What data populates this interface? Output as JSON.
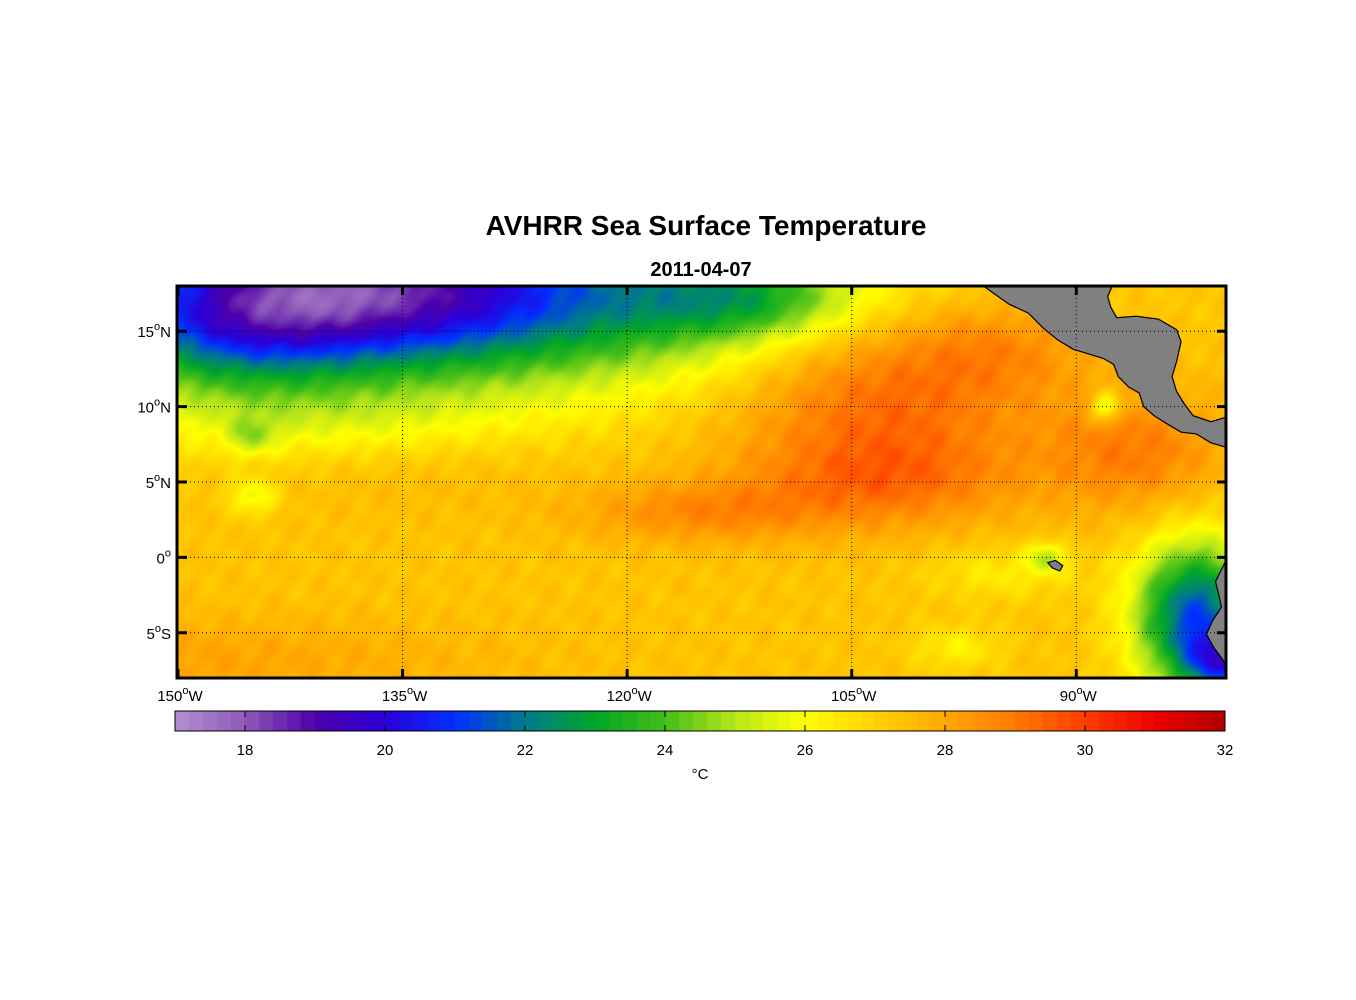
{
  "chart_data": {
    "type": "heatmap",
    "title": "AVHRR Sea Surface Temperature",
    "subtitle": "2011-04-07",
    "xlim": [
      -150,
      -80
    ],
    "ylim": [
      -8,
      18
    ],
    "x_ticks": [
      {
        "value": -150,
        "num": "150",
        "dir": "W"
      },
      {
        "value": -135,
        "num": "135",
        "dir": "W"
      },
      {
        "value": -120,
        "num": "120",
        "dir": "W"
      },
      {
        "value": -105,
        "num": "105",
        "dir": "W"
      },
      {
        "value": -90,
        "num": "90",
        "dir": "W"
      }
    ],
    "y_ticks": [
      {
        "value": 15,
        "num": "15",
        "dir": "N"
      },
      {
        "value": 10,
        "num": "10",
        "dir": "N"
      },
      {
        "value": 5,
        "num": "5",
        "dir": "N"
      },
      {
        "value": 0,
        "num": "0",
        "dir": ""
      },
      {
        "value": -5,
        "num": "5",
        "dir": "S"
      }
    ],
    "degree_symbol": "o",
    "grid": true,
    "colorbar": {
      "range": [
        17,
        32
      ],
      "ticks": [
        18,
        20,
        22,
        24,
        26,
        28,
        30,
        32
      ],
      "tick_labels": [
        "18",
        "20",
        "22",
        "24",
        "26",
        "28",
        "30",
        "32"
      ],
      "label": "°C",
      "colormap": [
        {
          "v": 17,
          "c": "#b48fd2"
        },
        {
          "v": 18,
          "c": "#8e5ab8"
        },
        {
          "v": 19,
          "c": "#4e00a8"
        },
        {
          "v": 20,
          "c": "#2a00d8"
        },
        {
          "v": 21,
          "c": "#0030ff"
        },
        {
          "v": 22,
          "c": "#007a8a"
        },
        {
          "v": 23,
          "c": "#00a628"
        },
        {
          "v": 24,
          "c": "#43be18"
        },
        {
          "v": 25,
          "c": "#b8e61a"
        },
        {
          "v": 26,
          "c": "#ffff00"
        },
        {
          "v": 27,
          "c": "#ffd100"
        },
        {
          "v": 28,
          "c": "#ffa800"
        },
        {
          "v": 29,
          "c": "#ff7a00"
        },
        {
          "v": 30,
          "c": "#ff3c00"
        },
        {
          "v": 31,
          "c": "#ee0000"
        },
        {
          "v": 32,
          "c": "#b00000"
        }
      ]
    },
    "sst_field": {
      "background_c": 27.3,
      "features": [
        {
          "lon": -128,
          "lat": 17.5,
          "c": -5.0,
          "rlon": 22,
          "rlat": 6
        },
        {
          "lon": -138,
          "lat": 18,
          "c": -4.0,
          "rlon": 12,
          "rlat": 4
        },
        {
          "lon": -147,
          "lat": 16,
          "c": -3.5,
          "rlon": 9,
          "rlat": 5
        },
        {
          "lon": -140,
          "lat": 14,
          "c": -1.0,
          "rlon": 14,
          "rlat": 3
        },
        {
          "lon": -112,
          "lat": 17,
          "c": -2.0,
          "rlon": 7,
          "rlat": 2.5
        },
        {
          "lon": -140,
          "lat": 9,
          "c": -1.2,
          "rlon": 14,
          "rlat": 3
        },
        {
          "lon": -103,
          "lat": 11,
          "c": 2.2,
          "rlon": 10,
          "rlat": 6
        },
        {
          "lon": -103,
          "lat": 5,
          "c": 1.4,
          "rlon": 9,
          "rlat": 3
        },
        {
          "lon": -115,
          "lat": 3,
          "c": 1.3,
          "rlon": 8,
          "rlat": 2
        },
        {
          "lon": -86,
          "lat": 7,
          "c": 1.6,
          "rlon": 6,
          "rlat": 4
        },
        {
          "lon": -95,
          "lat": 14,
          "c": 1.0,
          "rlon": 6,
          "rlat": 3
        },
        {
          "lon": -82,
          "lat": -4,
          "c": -6.0,
          "rlon": 4,
          "rlat": 5
        },
        {
          "lon": -80,
          "lat": -7,
          "c": -4.0,
          "rlon": 2.5,
          "rlat": 2
        },
        {
          "lon": -95,
          "lat": -1,
          "c": -0.9,
          "rlon": 5,
          "rlat": 1.8
        },
        {
          "lon": -92,
          "lat": 0,
          "c": -2.0,
          "rlon": 1.2,
          "rlat": 1.0
        },
        {
          "lon": -88,
          "lat": 10,
          "c": -2.5,
          "rlon": 1.0,
          "rlat": 1.0
        },
        {
          "lon": -145,
          "lat": 4,
          "c": -1.6,
          "rlon": 1.6,
          "rlat": 1.2
        },
        {
          "lon": -145,
          "lat": 8,
          "c": -1.4,
          "rlon": 1.6,
          "rlat": 1.2
        },
        {
          "lon": -98,
          "lat": -6,
          "c": -1.0,
          "rlon": 3,
          "rlat": 1.5
        },
        {
          "lon": -150,
          "lat": -7,
          "c": 0.8,
          "rlon": 20,
          "rlat": 3
        },
        {
          "lon": -135,
          "lat": 6,
          "c": 0.4,
          "rlon": 12,
          "rlat": 3
        }
      ]
    },
    "land": [
      {
        "name": "Central America",
        "color": "#808080",
        "polygon": [
          [
            -96.2,
            18
          ],
          [
            -95.5,
            17.5
          ],
          [
            -94.5,
            16.8
          ],
          [
            -93.2,
            16.2
          ],
          [
            -92.2,
            15.2
          ],
          [
            -91.2,
            14.4
          ],
          [
            -90.2,
            13.8
          ],
          [
            -89.2,
            13.5
          ],
          [
            -88.2,
            13.2
          ],
          [
            -87.5,
            12.8
          ],
          [
            -87.2,
            12.0
          ],
          [
            -86.5,
            11.3
          ],
          [
            -85.8,
            10.9
          ],
          [
            -85.5,
            10.0
          ],
          [
            -84.8,
            9.4
          ],
          [
            -84.0,
            8.9
          ],
          [
            -83.0,
            8.3
          ],
          [
            -82.0,
            8.2
          ],
          [
            -81.0,
            7.6
          ],
          [
            -80.0,
            7.3
          ],
          [
            -80.0,
            9.3
          ],
          [
            -81.0,
            9.0
          ],
          [
            -82.2,
            9.4
          ],
          [
            -82.8,
            10.2
          ],
          [
            -83.3,
            11.0
          ],
          [
            -83.6,
            12.0
          ],
          [
            -83.3,
            13.0
          ],
          [
            -83.0,
            14.3
          ],
          [
            -83.3,
            15.1
          ],
          [
            -84.5,
            15.8
          ],
          [
            -86.0,
            16.0
          ],
          [
            -87.3,
            15.9
          ],
          [
            -87.7,
            16.6
          ],
          [
            -87.9,
            17.3
          ],
          [
            -87.6,
            18
          ]
        ]
      },
      {
        "name": "South America coast",
        "color": "#808080",
        "polygon": [
          [
            -80,
            -0.2
          ],
          [
            -80.3,
            -0.8
          ],
          [
            -80.7,
            -1.6
          ],
          [
            -80.5,
            -2.4
          ],
          [
            -80.3,
            -3.3
          ],
          [
            -80.9,
            -4.2
          ],
          [
            -81.3,
            -5.1
          ],
          [
            -80.8,
            -6.0
          ],
          [
            -80.2,
            -6.8
          ],
          [
            -80,
            -7.2
          ]
        ]
      },
      {
        "name": "Galapagos",
        "color": "#808080",
        "polygon": [
          [
            -91.4,
            -0.2
          ],
          [
            -90.9,
            -0.55
          ],
          [
            -91.1,
            -0.9
          ],
          [
            -91.6,
            -0.7
          ],
          [
            -91.9,
            -0.35
          ]
        ]
      }
    ]
  }
}
